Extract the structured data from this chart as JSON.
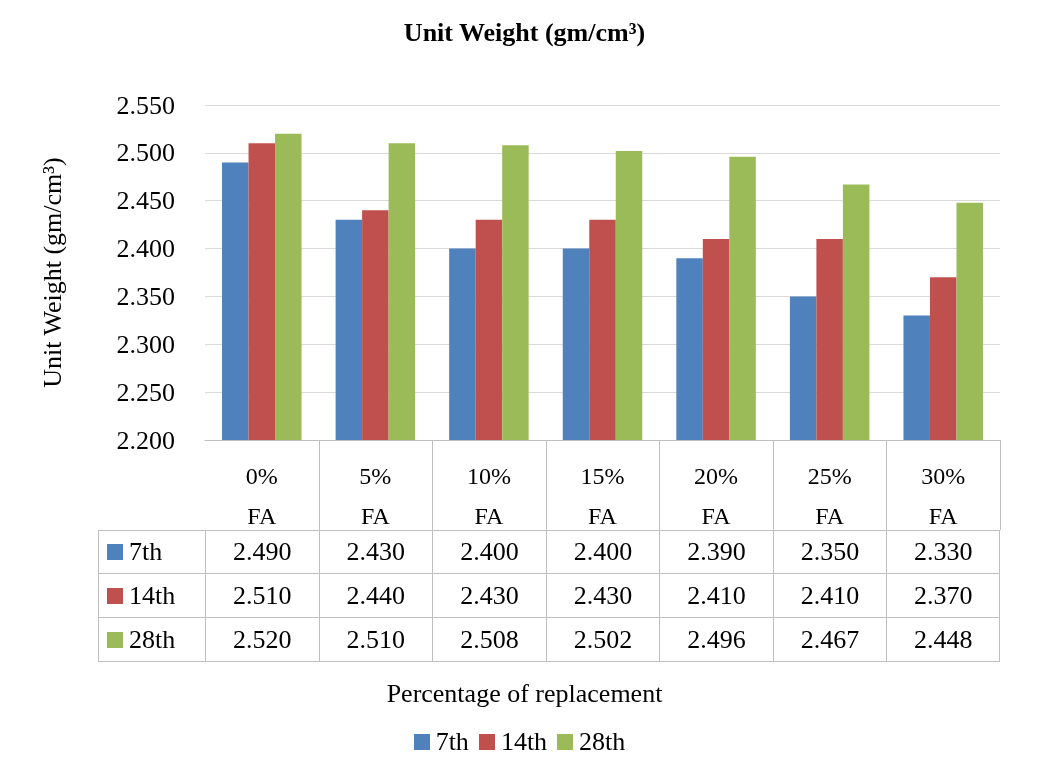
{
  "chart_data": {
    "type": "bar",
    "title": "Unit Weight (gm/cm³)",
    "annotations": [
      "Percentage of replacement"
    ],
    "ylabel": "Unit Weight (gm/cm³)",
    "categories": [
      "0% FA",
      "5% FA",
      "10% FA",
      "15% FA",
      "20% FA",
      "25% FA",
      "30% FA"
    ],
    "series": [
      {
        "name": "7th",
        "color": "#4f81bd",
        "values": [
          2.49,
          2.43,
          2.4,
          2.4,
          2.39,
          2.35,
          2.33
        ],
        "value_labels": [
          "2.490",
          "2.430",
          "2.400",
          "2.400",
          "2.390",
          "2.350",
          "2.330"
        ]
      },
      {
        "name": "14th",
        "color": "#c0504d",
        "values": [
          2.51,
          2.44,
          2.43,
          2.43,
          2.41,
          2.41,
          2.37
        ],
        "value_labels": [
          "2.510",
          "2.440",
          "2.430",
          "2.430",
          "2.410",
          "2.410",
          "2.370"
        ]
      },
      {
        "name": "28th",
        "color": "#9bbb59",
        "values": [
          2.52,
          2.51,
          2.508,
          2.502,
          2.496,
          2.467,
          2.448
        ],
        "value_labels": [
          "2.520",
          "2.510",
          "2.508",
          "2.502",
          "2.496",
          "2.467",
          "2.448"
        ]
      }
    ],
    "ylim": [
      2.2,
      2.55
    ],
    "yticks": [
      {
        "value": 2.2,
        "label": "2.200"
      },
      {
        "value": 2.25,
        "label": "2.250"
      },
      {
        "value": 2.3,
        "label": "2.300"
      },
      {
        "value": 2.35,
        "label": "2.350"
      },
      {
        "value": 2.4,
        "label": "2.400"
      },
      {
        "value": 2.45,
        "label": "2.450"
      },
      {
        "value": 2.5,
        "label": "2.500"
      },
      {
        "value": 2.55,
        "label": "2.550"
      }
    ],
    "grid": "y",
    "legend": "bottom"
  }
}
